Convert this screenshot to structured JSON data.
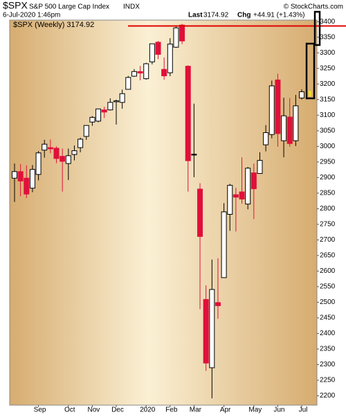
{
  "header": {
    "symbol": "$SPX",
    "name": "S&P 500 Large Cap Index",
    "exchange": "INDX",
    "source": "© StockCharts.com",
    "date": "6-Jul-2020 1:46pm",
    "last_label": "Last",
    "last": "3174.92",
    "chg_label": "Chg",
    "chg": "+44.91 (+1.43%)"
  },
  "chart_data": {
    "type": "candlestick",
    "legend": "$SPX (Weekly) 3174.92",
    "categories": [
      null,
      null,
      null,
      null,
      "Sep",
      null,
      null,
      null,
      null,
      "Oct",
      null,
      null,
      null,
      "Nov",
      null,
      null,
      null,
      "Dec",
      null,
      null,
      null,
      null,
      "2020",
      null,
      null,
      null,
      "Feb",
      null,
      null,
      null,
      "Mar",
      null,
      null,
      null,
      null,
      "Apr",
      null,
      null,
      null,
      null,
      "May",
      null,
      null,
      null,
      "Jun",
      null,
      null,
      null,
      "Jul"
    ],
    "open": [
      2898,
      2919,
      2898,
      2866,
      2910,
      2988,
      2996,
      2994,
      2968,
      2945,
      2974,
      2996,
      3032,
      3078,
      3081,
      3117,
      3117,
      3143,
      3141,
      3183,
      3225,
      3240,
      3217,
      3271,
      3334,
      3247,
      3236,
      3318,
      3389,
      3257,
      2975,
      2863,
      2509,
      2290,
      2499,
      2579,
      2782,
      2845,
      2854,
      2815,
      2915,
      2913,
      3005,
      3038,
      3213,
      3018,
      3094,
      3018,
      3155
    ],
    "high": [
      2945,
      2943,
      2939,
      2940,
      2985,
      3021,
      3022,
      3000,
      2993,
      2993,
      3003,
      3028,
      3066,
      3097,
      3121,
      3127,
      3154,
      3150,
      3182,
      3226,
      3248,
      3258,
      3268,
      3329,
      3338,
      3285,
      3347,
      3385,
      3393,
      3260,
      3137,
      2882,
      2554,
      2637,
      2641,
      2818,
      2880,
      2867,
      2965,
      2934,
      2945,
      2981,
      3068,
      3211,
      3233,
      3156,
      3155,
      3165,
      3183
    ],
    "low": [
      2822,
      2840,
      2834,
      2853,
      2891,
      2964,
      2978,
      2946,
      2855,
      2892,
      2955,
      2981,
      3021,
      3066,
      3077,
      3091,
      3115,
      3070,
      3121,
      3183,
      3223,
      3212,
      3214,
      3263,
      3280,
      3214,
      3225,
      3316,
      3328,
      2855,
      2901,
      2478,
      2280,
      2192,
      2447,
      2579,
      2729,
      2727,
      2816,
      2798,
      2767,
      2913,
      2984,
      3026,
      2999,
      2965,
      2999,
      3001,
      3150
    ],
    "close": [
      2919,
      2889,
      2847,
      2926,
      2979,
      3007,
      2992,
      2961,
      2952,
      2970,
      2986,
      3023,
      3067,
      3093,
      3120,
      3110,
      3141,
      3146,
      3169,
      3221,
      3240,
      3235,
      3265,
      3329,
      3295,
      3226,
      3328,
      3380,
      3338,
      2954,
      2972,
      2711,
      2305,
      2541,
      2489,
      2790,
      2875,
      2837,
      2831,
      2930,
      2864,
      2955,
      3044,
      3194,
      3041,
      3098,
      3009,
      3130,
      3175
    ],
    "up_color": "#000000",
    "down_color": "#e0103a",
    "reference_line": {
      "value": 3386,
      "color": "#e00000"
    },
    "ylim": [
      2170,
      3405
    ],
    "yticks": [
      2200,
      2250,
      2300,
      2350,
      2400,
      2450,
      2500,
      2550,
      2600,
      2650,
      2700,
      2750,
      2800,
      2850,
      2900,
      2950,
      3000,
      3050,
      3100,
      3150,
      3200,
      3250,
      3300,
      3350,
      3400
    ]
  }
}
